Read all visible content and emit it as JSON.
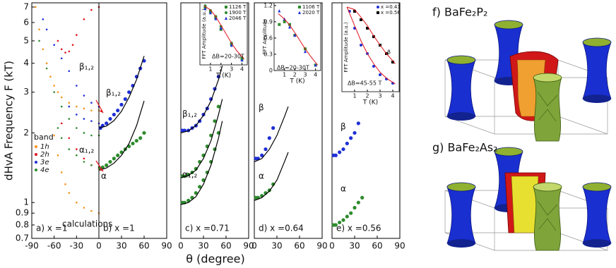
{
  "chart_data": [
    {
      "type": "scatter",
      "label": "a) x =1",
      "ylabel": "dHvA Frequency F (kT)",
      "log_y": true,
      "xlim": [
        -90,
        0
      ],
      "xticks": [
        -90,
        -60,
        -30,
        0
      ],
      "ylim": [
        0.7,
        7.3
      ],
      "yticks": [
        0.7,
        0.8,
        0.9,
        1,
        2,
        3,
        4,
        5,
        6,
        7
      ],
      "legend_title": "band",
      "annotations": [
        "calculations"
      ],
      "series": [
        {
          "name": "1h",
          "color": "#f7941d",
          "marker": "dot",
          "x": [
            -85,
            -80,
            -75,
            -70,
            -65,
            -60,
            -55,
            -50,
            -40,
            -30,
            -20,
            -10,
            0,
            null,
            -60,
            -55,
            -50,
            -45,
            -40,
            -30,
            -20,
            -10,
            0
          ],
          "values": [
            7,
            5.6,
            4.6,
            4.0,
            3.5,
            3.2,
            3.0,
            2.85,
            2.7,
            2.6,
            2.55,
            2.5,
            2.5,
            null,
            1.95,
            1.6,
            1.35,
            1.2,
            1.1,
            1.0,
            0.95,
            0.92,
            0.9
          ]
        },
        {
          "name": "2h",
          "color": "#e0141e",
          "marker": "dot",
          "x": [
            -55,
            -50,
            -45,
            -40,
            -35,
            -30,
            -20,
            -10,
            0,
            null,
            -50,
            -40,
            -30,
            -20,
            -10,
            0
          ],
          "values": [
            5.0,
            4.6,
            4.45,
            4.5,
            4.8,
            5.3,
            6.2,
            6.8,
            7.0,
            null,
            2.2,
            1.9,
            1.7,
            1.55,
            1.45,
            1.4
          ]
        },
        {
          "name": "3e",
          "color": "#1f2fd6",
          "marker": "dot",
          "x": [
            -75,
            -70,
            -60,
            -50,
            -40,
            -30,
            -20,
            -10,
            0,
            null,
            -40,
            -30,
            -20,
            -10,
            0
          ],
          "values": [
            6.2,
            5.6,
            4.8,
            4.2,
            3.7,
            3.2,
            2.9,
            2.7,
            2.6,
            null,
            2.6,
            2.4,
            2.3,
            2.25,
            2.2
          ]
        },
        {
          "name": "4e",
          "color": "#2e8b2e",
          "marker": "dot",
          "x": [
            -80,
            -70,
            -60,
            -50,
            -40,
            -30,
            -20,
            -10,
            0,
            null,
            -55,
            -50,
            -40,
            -30,
            -20,
            -10,
            0
          ],
          "values": [
            5.0,
            3.8,
            3.0,
            2.6,
            2.3,
            2.1,
            2.0,
            1.95,
            1.95,
            null,
            2.1,
            1.9,
            1.7,
            1.6,
            1.5,
            1.45,
            1.42
          ]
        }
      ]
    },
    {
      "type": "scatter",
      "label": "b) x =1",
      "log_y": true,
      "xlim": [
        0,
        90
      ],
      "xticks": [
        30,
        60,
        90
      ],
      "ylim": [
        0.7,
        7.3
      ],
      "annotations": [
        "β₁,₂",
        "β₁,₂",
        "α₁,₂",
        "α"
      ],
      "series": [
        {
          "color": "#1f2fd6",
          "marker": "circle",
          "x": [
            2,
            5,
            10,
            15,
            20,
            25,
            30,
            35,
            40,
            45,
            50,
            55,
            60
          ],
          "values": [
            2.1,
            2.15,
            2.2,
            2.3,
            2.4,
            2.5,
            2.65,
            2.8,
            3.0,
            3.2,
            3.5,
            3.8,
            4.1
          ]
        },
        {
          "color": "#2e8b2e",
          "marker": "circle",
          "x": [
            2,
            5,
            10,
            15,
            20,
            25,
            30,
            35,
            40,
            45,
            50,
            55,
            60
          ],
          "values": [
            1.4,
            1.42,
            1.45,
            1.5,
            1.55,
            1.6,
            1.65,
            1.7,
            1.75,
            1.8,
            1.85,
            1.9,
            2.0
          ]
        },
        {
          "color": "#000000",
          "marker": "none",
          "x": [
            0,
            10,
            20,
            30,
            40,
            50,
            60
          ],
          "values": [
            2.1,
            2.14,
            2.26,
            2.48,
            2.85,
            3.4,
            4.3
          ]
        },
        {
          "color": "#000000",
          "marker": "none",
          "x": [
            0,
            10,
            20,
            30,
            40,
            50,
            60
          ],
          "values": [
            1.38,
            1.41,
            1.48,
            1.6,
            1.8,
            2.15,
            2.75
          ]
        }
      ]
    },
    {
      "type": "scatter",
      "label": "c) x =0.71",
      "xlabel": "θ (degree)",
      "log_y": true,
      "xlim": [
        0,
        90
      ],
      "xticks": [
        0,
        30,
        60,
        90
      ],
      "ylim": [
        0.7,
        7.3
      ],
      "annotations": [
        "β₁,₂",
        "α₁,₂"
      ],
      "series": [
        {
          "color": "#1f2fd6",
          "marker": "circle",
          "x": [
            2,
            5,
            10,
            15,
            20,
            25,
            30,
            35,
            40,
            45,
            50
          ],
          "values": [
            2.05,
            2.05,
            2.05,
            2.1,
            2.15,
            2.25,
            2.4,
            2.55,
            2.8,
            3.1,
            3.5
          ]
        },
        {
          "color": "#2e8b2e",
          "marker": "circle",
          "x": [
            2,
            5,
            10,
            15,
            20,
            25,
            30,
            35,
            40,
            45,
            50
          ],
          "values": [
            1.3,
            1.3,
            1.32,
            1.35,
            1.4,
            1.5,
            1.6,
            1.75,
            1.95,
            2.25,
            2.6
          ]
        },
        {
          "color": "#2e8b2e",
          "marker": "circle",
          "x": [
            2,
            5,
            10,
            15,
            20,
            25,
            30,
            35,
            40,
            45,
            50
          ],
          "values": [
            1.0,
            1.0,
            1.02,
            1.05,
            1.1,
            1.17,
            1.25,
            1.35,
            1.5,
            1.7,
            2.0
          ]
        },
        {
          "color": "#000000",
          "marker": "none",
          "x": [
            0,
            10,
            20,
            30,
            40,
            50,
            55
          ],
          "values": [
            2.0,
            2.04,
            2.15,
            2.38,
            2.75,
            3.4,
            3.9
          ]
        },
        {
          "color": "#000000",
          "marker": "none",
          "x": [
            0,
            10,
            20,
            30,
            40,
            50,
            55
          ],
          "values": [
            1.28,
            1.31,
            1.38,
            1.55,
            1.85,
            2.4,
            2.8
          ]
        },
        {
          "color": "#000000",
          "marker": "none",
          "x": [
            0,
            10,
            20,
            30,
            40,
            50,
            55
          ],
          "values": [
            0.98,
            1.0,
            1.06,
            1.2,
            1.45,
            1.9,
            2.25
          ]
        }
      ],
      "inset": {
        "xlabel": "T (K)",
        "ylabel": "FFT Amplitude (a.u.)",
        "xlim": [
          0,
          4.5
        ],
        "xticks": [
          1,
          2,
          3,
          4
        ],
        "ylim": [
          0,
          1.05
        ],
        "annotations": [
          "ΔB=20-30T"
        ],
        "series": [
          {
            "name": "1126 T",
            "color": "#2e8b2e",
            "marker": "square",
            "x": [
              0.5,
              1,
              1.5,
              2,
              3,
              4
            ],
            "values": [
              0.97,
              0.9,
              0.8,
              0.6,
              0.35,
              0.1
            ]
          },
          {
            "name": "1900 T",
            "color": "#2e8b2e",
            "marker": "circle",
            "x": [
              0.5,
              1,
              1.5,
              2,
              3,
              4
            ],
            "values": [
              1.0,
              0.92,
              0.82,
              0.65,
              0.37,
              0.12
            ]
          },
          {
            "name": "2046 T",
            "color": "#1f2fd6",
            "marker": "triangle",
            "x": [
              0.5,
              1,
              1.5,
              2,
              3,
              4
            ],
            "values": [
              0.95,
              0.88,
              0.78,
              0.62,
              0.33,
              0.08
            ]
          },
          {
            "color": "#e0141e",
            "marker": "none",
            "x": [
              0.4,
              1,
              1.5,
              2,
              2.5,
              3,
              3.5,
              4.2
            ],
            "values": [
              1.0,
              0.93,
              0.82,
              0.67,
              0.52,
              0.37,
              0.24,
              0.1
            ]
          }
        ]
      }
    },
    {
      "type": "scatter",
      "label": "d) x =0.64",
      "log_y": true,
      "xlim": [
        0,
        90
      ],
      "xticks": [
        0,
        30,
        60,
        90
      ],
      "ylim": [
        0.7,
        7.3
      ],
      "annotations": [
        "β",
        "α"
      ],
      "series": [
        {
          "color": "#1f2fd6",
          "marker": "circle",
          "x": [
            2,
            5,
            10,
            15,
            20,
            25
          ],
          "values": [
            1.55,
            1.55,
            1.6,
            1.7,
            1.9,
            2.1
          ]
        },
        {
          "color": "#2e8b2e",
          "marker": "circle",
          "x": [
            2,
            5,
            10,
            15,
            20,
            25
          ],
          "values": [
            1.05,
            1.05,
            1.07,
            1.1,
            1.13,
            1.2
          ]
        },
        {
          "color": "#000000",
          "marker": "none",
          "x": [
            0,
            10,
            20,
            30,
            40,
            45
          ],
          "values": [
            1.5,
            1.55,
            1.7,
            1.95,
            2.35,
            2.6
          ]
        },
        {
          "color": "#000000",
          "marker": "none",
          "x": [
            0,
            10,
            20,
            30,
            40,
            45
          ],
          "values": [
            1.02,
            1.05,
            1.12,
            1.25,
            1.5,
            1.65
          ]
        }
      ],
      "inset": {
        "xlabel": "T (K)",
        "ylabel": "FFT Amplitude",
        "xlim": [
          0,
          4.5
        ],
        "xticks": [
          1,
          2,
          3,
          4
        ],
        "ylim": [
          0,
          1.25
        ],
        "yticks": [
          0,
          0.3,
          0.6,
          0.9,
          1.2
        ],
        "annotations": [
          "ΔB=20-30T"
        ],
        "series": [
          {
            "name": "1106 T",
            "color": "#2e8b2e",
            "marker": "square",
            "x": [
              0.5,
              1,
              1.5,
              2,
              3,
              4
            ],
            "values": [
              0.85,
              0.9,
              0.85,
              0.65,
              0.4,
              0.1
            ]
          },
          {
            "name": "2020 T",
            "color": "#1f2fd6",
            "marker": "triangle",
            "x": [
              0.5,
              1,
              1.5,
              2,
              3,
              4
            ],
            "values": [
              1.1,
              0.95,
              0.8,
              0.65,
              0.35,
              0.1
            ]
          },
          {
            "color": "#e0141e",
            "marker": "none",
            "x": [
              0.4,
              1,
              1.5,
              2,
              2.5,
              3,
              3.5,
              4.2
            ],
            "values": [
              1.05,
              0.95,
              0.84,
              0.7,
              0.55,
              0.4,
              0.27,
              0.1
            ]
          }
        ]
      }
    },
    {
      "type": "scatter",
      "label": "e) x =0.56",
      "log_y": true,
      "xlim": [
        0,
        90
      ],
      "xticks": [
        0,
        30,
        60,
        90
      ],
      "ylim": [
        0.7,
        7.3
      ],
      "annotations": [
        "β",
        "α"
      ],
      "series": [
        {
          "color": "#1f2fd6",
          "marker": "circle",
          "x": [
            2,
            5,
            10,
            15,
            20,
            25,
            30,
            35
          ],
          "values": [
            1.6,
            1.6,
            1.65,
            1.7,
            1.8,
            1.9,
            2.0,
            2.2
          ]
        },
        {
          "color": "#2e8b2e",
          "marker": "circle",
          "x": [
            2,
            5,
            10,
            15,
            20,
            25,
            30,
            35,
            40
          ],
          "values": [
            0.8,
            0.8,
            0.82,
            0.84,
            0.87,
            0.9,
            0.95,
            1.0,
            1.05
          ]
        }
      ],
      "inset": {
        "xlabel": "T (K)",
        "ylabel": "FFT Amplitude (a.u.)",
        "xlim": [
          0,
          4.5
        ],
        "xticks": [
          1,
          2,
          3,
          4
        ],
        "ylim": [
          0,
          1.05
        ],
        "annotations": [
          "ΔB=45-55 T",
          "β"
        ],
        "series": [
          {
            "name": "x =0.41",
            "color": "#1f2fd6",
            "marker": "circle",
            "x": [
              0.6,
              1,
              1.5,
              2,
              2.5,
              3,
              3.5,
              4
            ],
            "values": [
              0.95,
              0.75,
              0.55,
              0.45,
              0.3,
              0.2,
              0.15,
              0.1
            ]
          },
          {
            "name": "x =0.56",
            "color": "#000000",
            "marker": "square",
            "x": [
              1,
              1.5,
              2,
              2.5,
              3,
              3.5,
              4
            ],
            "values": [
              0.95,
              0.85,
              0.75,
              0.65,
              0.55,
              0.45,
              0.35
            ]
          },
          {
            "color": "#e0141e",
            "marker": "none",
            "x": [
              0.4,
              1,
              1.5,
              2,
              2.5,
              3,
              3.5,
              4.2
            ],
            "values": [
              1.0,
              0.78,
              0.6,
              0.45,
              0.33,
              0.23,
              0.16,
              0.09
            ]
          },
          {
            "color": "#e0141e",
            "marker": "none",
            "x": [
              0.4,
              1,
              1.5,
              2,
              2.5,
              3,
              3.5,
              4.2
            ],
            "values": [
              1.0,
              0.97,
              0.88,
              0.78,
              0.66,
              0.55,
              0.45,
              0.33
            ]
          }
        ]
      }
    }
  ],
  "fermi_surfaces": [
    "f)  BaFe₂P₂",
    "g)  BaFe₂As₂"
  ]
}
